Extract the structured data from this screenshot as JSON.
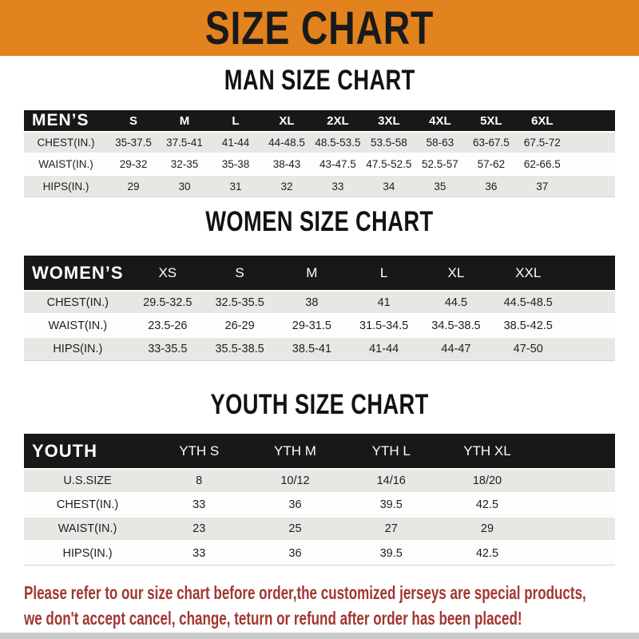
{
  "banner": {
    "title": "SIZE CHART"
  },
  "sections": [
    {
      "id": "men",
      "heading": "MAN SIZE CHART",
      "header_label": "MEN’S",
      "columns": [
        "S",
        "M",
        "L",
        "XL",
        "2XL",
        "3XL",
        "4XL",
        "5XL",
        "6XL"
      ],
      "rows": [
        {
          "label": "CHEST(IN.)",
          "values": [
            "35-37.5",
            "37.5-41",
            "41-44",
            "44-48.5",
            "48.5-53.5",
            "53.5-58",
            "58-63",
            "63-67.5",
            "67.5-72"
          ]
        },
        {
          "label": "WAIST(IN.)",
          "values": [
            "29-32",
            "32-35",
            "35-38",
            "38-43",
            "43-47.5",
            "47.5-52.5",
            "52.5-57",
            "57-62",
            "62-66.5"
          ]
        },
        {
          "label": "HIPS(IN.)",
          "values": [
            "29",
            "30",
            "31",
            "32",
            "33",
            "34",
            "35",
            "36",
            "37"
          ]
        }
      ]
    },
    {
      "id": "women",
      "heading": "WOMEN SIZE CHART",
      "header_label": "WOMEN’S",
      "columns": [
        "XS",
        "S",
        "M",
        "L",
        "XL",
        "XXL"
      ],
      "rows": [
        {
          "label": "CHEST(IN.)",
          "values": [
            "29.5-32.5",
            "32.5-35.5",
            "38",
            "41",
            "44.5",
            "44.5-48.5"
          ]
        },
        {
          "label": "WAIST(IN.)",
          "values": [
            "23.5-26",
            "26-29",
            "29-31.5",
            "31.5-34.5",
            "34.5-38.5",
            "38.5-42.5"
          ]
        },
        {
          "label": "HIPS(IN.)",
          "values": [
            "33-35.5",
            "35.5-38.5",
            "38.5-41",
            "41-44",
            "44-47",
            "47-50"
          ]
        }
      ]
    },
    {
      "id": "youth",
      "heading": "YOUTH SIZE CHART",
      "header_label": "YOUTH",
      "columns": [
        "YTH S",
        "YTH M",
        "YTH L",
        "YTH XL"
      ],
      "rows": [
        {
          "label": "U.S.SIZE",
          "values": [
            "8",
            "10/12",
            "14/16",
            "18/20"
          ]
        },
        {
          "label": "CHEST(IN.)",
          "values": [
            "33",
            "36",
            "39.5",
            "42.5"
          ]
        },
        {
          "label": "WAIST(IN.)",
          "values": [
            "23",
            "25",
            "27",
            "29"
          ]
        },
        {
          "label": "HIPS(IN.)",
          "values": [
            "33",
            "36",
            "39.5",
            "42.5"
          ]
        }
      ]
    }
  ],
  "footer": {
    "line1": "Please refer to our size chart before order,the customized jerseys are special products,",
    "line2": "we don't accept cancel, change, teturn or refund after order has been placed!"
  },
  "colors": {
    "banner-bg": "#E2831E",
    "banner-fg": "#1A1A1A",
    "header-bg": "#181818",
    "header-fg": "#FFFFFF",
    "row-gray": "#E8E7E4",
    "row-white": "#FDFDFD",
    "text": "#1E1E1E",
    "footer-red": "#A23732",
    "strip-gray": "#CBCBCB"
  }
}
